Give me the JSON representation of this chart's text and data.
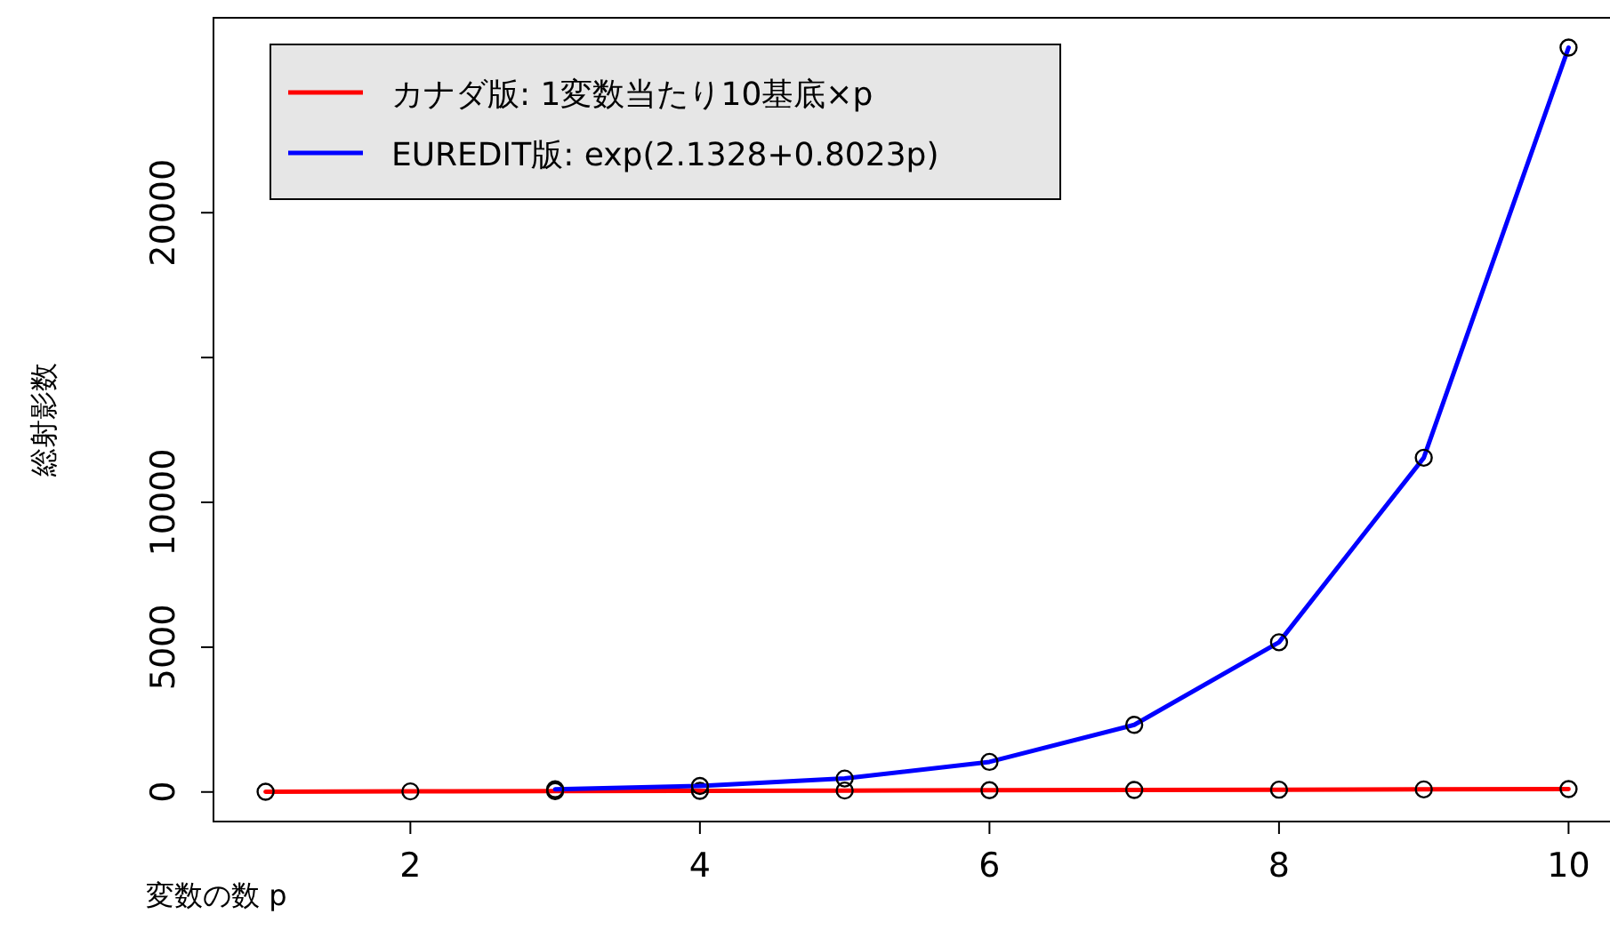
{
  "chart_data": {
    "type": "line",
    "xlabel": "変数の数 p",
    "ylabel": "総射影数",
    "xlim": [
      0.64,
      10.36
    ],
    "ylim": [
      -1020,
      26730
    ],
    "xticks": [
      2,
      4,
      6,
      8,
      10
    ],
    "yticks": [
      0,
      5000,
      10000,
      {
        "value": 15000,
        "label": null
      },
      20000
    ],
    "marker": "circle",
    "line_style": "solid",
    "legend": "top left",
    "grid": false,
    "series": [
      {
        "name": "カナダ版: 1変数当たり10基底×p",
        "color": "#ff0000",
        "x": [
          1,
          2,
          3,
          4,
          5,
          6,
          7,
          8,
          9,
          10
        ],
        "values": [
          10,
          20,
          30,
          40,
          50,
          60,
          70,
          80,
          90,
          100
        ]
      },
      {
        "name": "EUREDIT版: exp(2.1328+0.8023p)",
        "color": "#0000ff",
        "x": [
          3,
          4,
          5,
          6,
          7,
          8,
          9,
          10
        ],
        "values": [
          94,
          209,
          466,
          1039,
          2318,
          5170,
          11540,
          25700
        ]
      }
    ]
  }
}
